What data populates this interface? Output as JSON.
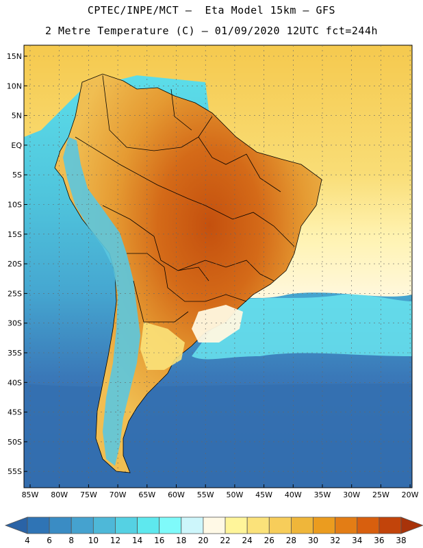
{
  "header": {
    "line1": "CPTEC/INPE/MCT –  Eta Model 15km – GFS",
    "line2": "2 Metre Temperature (C) – 01/09/2020 12UTC fct=244h"
  },
  "map": {
    "lat_labels": [
      "15N",
      "10N",
      "5N",
      "EQ",
      "5S",
      "10S",
      "15S",
      "20S",
      "25S",
      "30S",
      "35S",
      "40S",
      "45S",
      "50S",
      "55S"
    ],
    "lon_labels": [
      "85W",
      "80W",
      "75W",
      "70W",
      "65W",
      "60W",
      "55W",
      "50W",
      "45W",
      "40W",
      "35W",
      "30W",
      "25W",
      "20W"
    ]
  },
  "colorbar": {
    "labels": [
      "4",
      "6",
      "8",
      "10",
      "12",
      "14",
      "16",
      "18",
      "20",
      "22",
      "24",
      "26",
      "28",
      "30",
      "32",
      "34",
      "36",
      "38"
    ],
    "colors": [
      "#2a63a6",
      "#2f74b5",
      "#3a8cc4",
      "#45a2cf",
      "#4eb8d8",
      "#55d1e3",
      "#5ee8ee",
      "#7ffafa",
      "#cdf6fb",
      "#fff9e6",
      "#fff59a",
      "#fbe27a",
      "#f7cd5a",
      "#efb63a",
      "#eb9c1f",
      "#e37d15",
      "#d85f0e",
      "#c2440a",
      "#a8330a"
    ]
  },
  "palette": {
    "ocean_cold": "#2f62a3",
    "ocean_mid": "#46a8d1",
    "ocean_warm": "#5fe3ec",
    "atlantic_tropical": "#f7d45c",
    "land_hot": "#cf6a18",
    "land_warm": "#eaa33a",
    "andes": "#5bc6df",
    "border": "#000000"
  }
}
